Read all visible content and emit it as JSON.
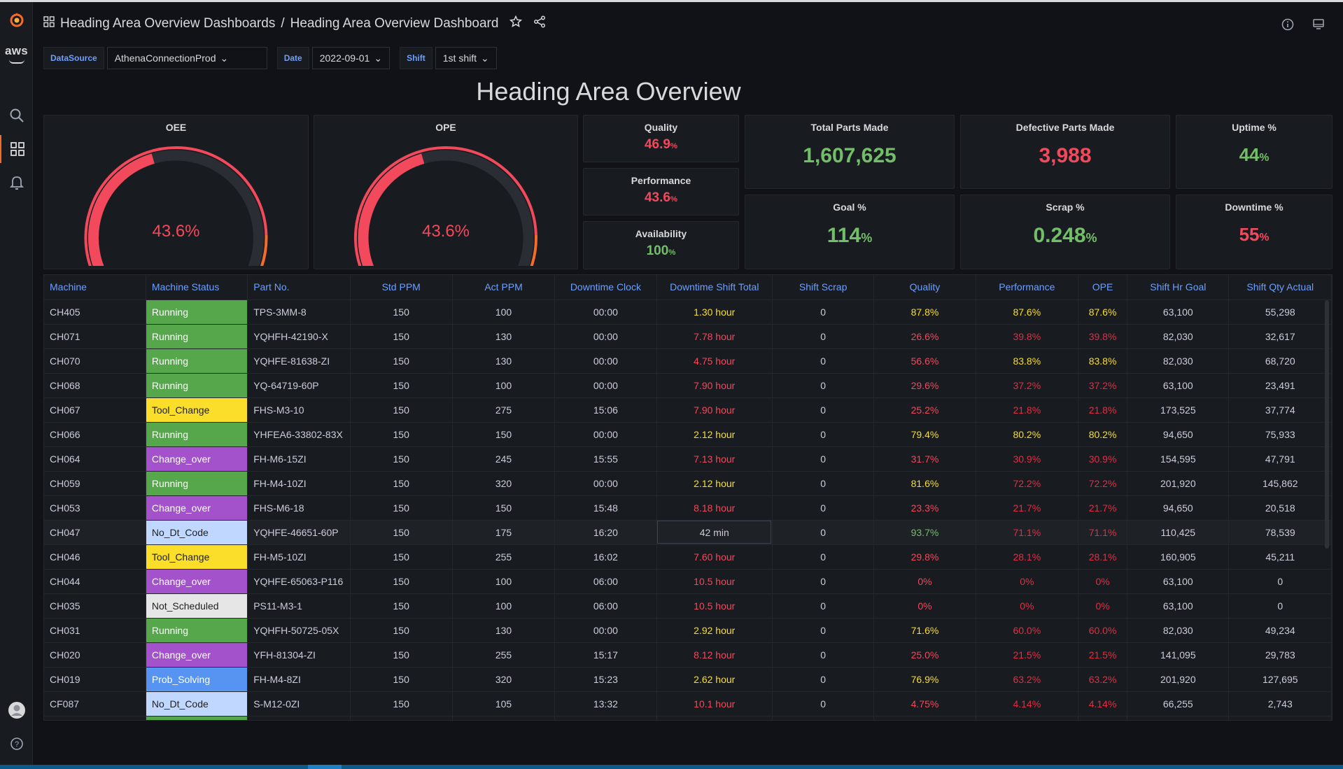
{
  "breadcrumb": {
    "folder": "Heading Area Overview Dashboards",
    "separator": "/",
    "dashboard": "Heading Area Overview Dashboard"
  },
  "aws_label": "aws",
  "variables": [
    {
      "label": "DataSource",
      "value": "AthenaConnectionProd"
    },
    {
      "label": "Date",
      "value": "2022-09-01"
    },
    {
      "label": "Shift",
      "value": "1st shift"
    }
  ],
  "title": "Heading Area Overview",
  "gauges": [
    {
      "label": "OEE",
      "value": "43.6%",
      "fraction": 0.436
    },
    {
      "label": "OPE",
      "value": "43.6%",
      "fraction": 0.436
    }
  ],
  "stats": {
    "quality": {
      "label": "Quality",
      "value": "46.9",
      "unit": "%"
    },
    "performance": {
      "label": "Performance",
      "value": "43.6",
      "unit": "%"
    },
    "availability": {
      "label": "Availability",
      "value": "100",
      "unit": "%"
    },
    "total_parts": {
      "label": "Total Parts Made",
      "value": "1,607,625"
    },
    "defective_parts": {
      "label": "Defective Parts Made",
      "value": "3,988"
    },
    "uptime": {
      "label": "Uptime %",
      "value": "44",
      "unit": "%"
    },
    "goal": {
      "label": "Goal %",
      "value": "114",
      "unit": "%"
    },
    "scrap": {
      "label": "Scrap %",
      "value": "0.248",
      "unit": "%"
    },
    "downtime": {
      "label": "Downtime %",
      "value": "55",
      "unit": "%"
    }
  },
  "colors": {
    "green": "#73bf69",
    "red": "#f2495c",
    "yellow": "#fade2a",
    "purple": "#a352cc",
    "lightblue": "#c0d8ff",
    "blue": "#5794f2",
    "gray": "#e0e0e0",
    "orange": "#f56b2a"
  },
  "table": {
    "columns": [
      "Machine",
      "Machine Status",
      "Part No.",
      "Std PPM",
      "Act PPM",
      "Downtime Clock",
      "Downtime Shift Total",
      "Shift Scrap",
      "Quality",
      "Performance",
      "OPE",
      "Shift Hr Goal",
      "Shift Qty Actual"
    ],
    "rows": [
      [
        "CH405",
        "Running",
        "TPS-3MM-8",
        "150",
        "100",
        "00:00",
        "1.30 hour",
        "0",
        "87.8%",
        "87.6%",
        "87.6%",
        "63,100",
        "55,298"
      ],
      [
        "CH071",
        "Running",
        "YQHFH-42190-X",
        "150",
        "130",
        "00:00",
        "7.78 hour",
        "0",
        "26.6%",
        "39.8%",
        "39.8%",
        "82,030",
        "32,617"
      ],
      [
        "CH070",
        "Running",
        "YQHFE-81638-ZI",
        "150",
        "130",
        "00:00",
        "4.75 hour",
        "0",
        "56.6%",
        "83.8%",
        "83.8%",
        "82,030",
        "68,720"
      ],
      [
        "CH068",
        "Running",
        "YQ-64719-60P",
        "150",
        "100",
        "00:00",
        "7.90 hour",
        "0",
        "29.6%",
        "37.2%",
        "37.2%",
        "63,100",
        "23,491"
      ],
      [
        "CH067",
        "Tool_Change",
        "FHS-M3-10",
        "150",
        "275",
        "15:06",
        "7.90 hour",
        "0",
        "25.2%",
        "21.8%",
        "21.8%",
        "173,525",
        "37,774"
      ],
      [
        "CH066",
        "Running",
        "YHFEA6-33802-83X",
        "150",
        "150",
        "00:00",
        "2.12 hour",
        "0",
        "79.4%",
        "80.2%",
        "80.2%",
        "94,650",
        "75,933"
      ],
      [
        "CH064",
        "Change_over",
        "FH-M6-15ZI",
        "150",
        "245",
        "15:55",
        "7.13 hour",
        "0",
        "31.7%",
        "30.9%",
        "30.9%",
        "154,595",
        "47,791"
      ],
      [
        "CH059",
        "Running",
        "FH-M4-10ZI",
        "150",
        "320",
        "00:00",
        "2.12 hour",
        "0",
        "81.6%",
        "72.2%",
        "72.2%",
        "201,920",
        "145,862"
      ],
      [
        "CH053",
        "Change_over",
        "FHS-M6-18",
        "150",
        "150",
        "15:48",
        "8.18 hour",
        "0",
        "23.3%",
        "21.7%",
        "21.7%",
        "94,650",
        "20,518"
      ],
      [
        "CH047",
        "No_Dt_Code",
        "YQHFE-46651-60P",
        "150",
        "175",
        "16:20",
        "42 min",
        "0",
        "93.7%",
        "71.1%",
        "71.1%",
        "110,425",
        "78,539"
      ],
      [
        "CH046",
        "Tool_Change",
        "FH-M5-10ZI",
        "150",
        "255",
        "16:02",
        "7.60 hour",
        "0",
        "29.8%",
        "28.1%",
        "28.1%",
        "160,905",
        "45,211"
      ],
      [
        "CH044",
        "Change_over",
        "YQHFE-65063-P116",
        "150",
        "100",
        "06:00",
        "10.5 hour",
        "0",
        "0%",
        "0%",
        "0%",
        "63,100",
        "0"
      ],
      [
        "CH035",
        "Not_Scheduled",
        "PS11-M3-1",
        "150",
        "100",
        "06:00",
        "10.5 hour",
        "0",
        "0%",
        "0%",
        "0%",
        "63,100",
        "0"
      ],
      [
        "CH031",
        "Running",
        "YQHFH-50725-05X",
        "150",
        "130",
        "00:00",
        "2.92 hour",
        "0",
        "71.6%",
        "60.0%",
        "60.0%",
        "82,030",
        "49,234"
      ],
      [
        "CH020",
        "Change_over",
        "YFH-81304-ZI",
        "150",
        "255",
        "15:17",
        "8.12 hour",
        "0",
        "25.0%",
        "21.5%",
        "21.5%",
        "141,095",
        "29,783"
      ],
      [
        "CH019",
        "Prob_Solving",
        "FH-M4-8ZI",
        "150",
        "320",
        "15:23",
        "2.62 hour",
        "0",
        "76.9%",
        "63.2%",
        "63.2%",
        "201,920",
        "127,695"
      ],
      [
        "CF087",
        "No_Dt_Code",
        "S-M12-0ZI",
        "150",
        "105",
        "13:32",
        "10.1 hour",
        "0",
        "4.75%",
        "4.14%",
        "4.14%",
        "66,255",
        "2,743"
      ]
    ]
  }
}
